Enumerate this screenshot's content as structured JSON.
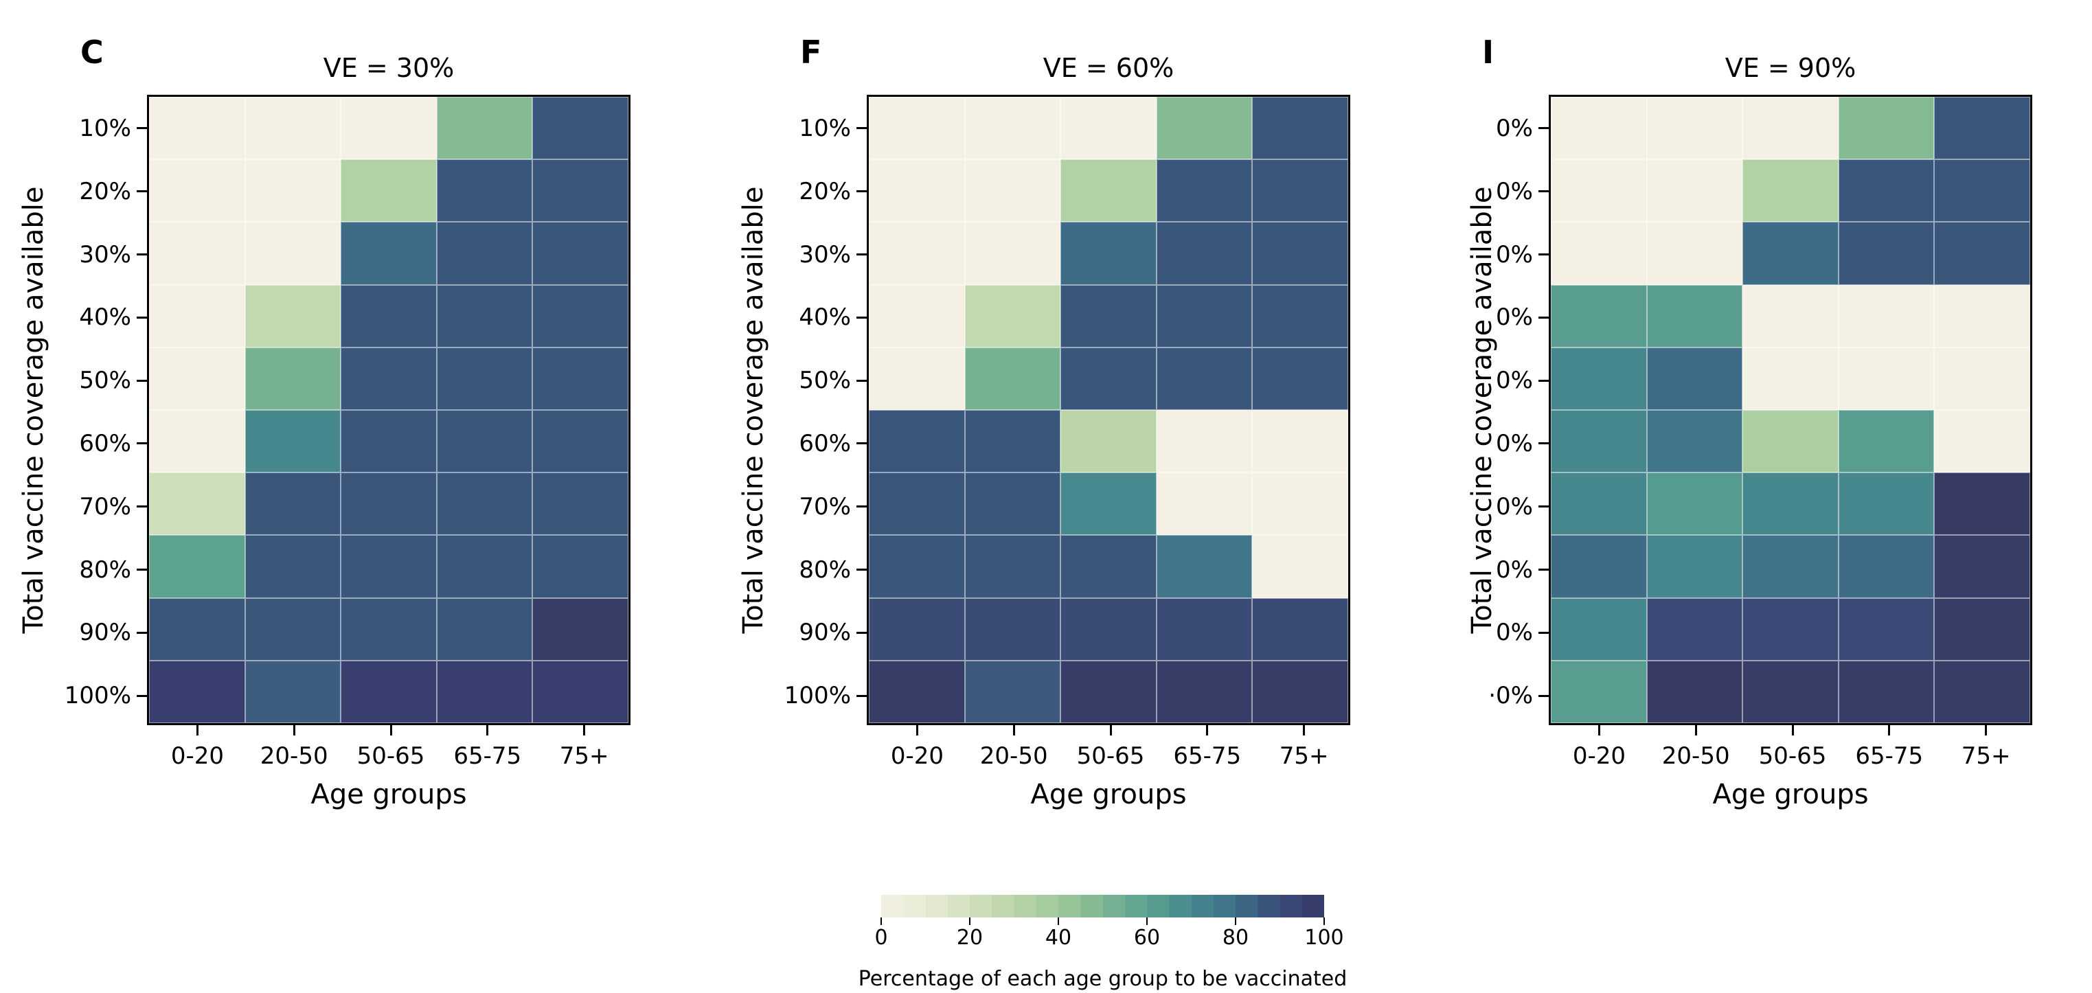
{
  "figure": {
    "background": "#ffffff"
  },
  "colors": {
    "frame": "#000000",
    "gridline": "rgba(255,255,255,0.5)",
    "colormap_stops": [
      [
        0,
        "#f4f1e4"
      ],
      [
        10,
        "#e7ebd4"
      ],
      [
        20,
        "#d2e0bf"
      ],
      [
        30,
        "#bbd5a8"
      ],
      [
        40,
        "#9ec79a"
      ],
      [
        50,
        "#7cb591"
      ],
      [
        60,
        "#5ca28f"
      ],
      [
        70,
        "#47898e"
      ],
      [
        80,
        "#3e6e88"
      ],
      [
        90,
        "#3a4b76"
      ],
      [
        95,
        "#394276"
      ],
      [
        100,
        "#37395f"
      ]
    ]
  },
  "colorbar": {
    "label": "Percentage of each age group to be vaccinated",
    "tick_values": [
      0,
      20,
      40,
      60,
      80,
      100
    ],
    "tick_labels": [
      "0",
      "20",
      "40",
      "60",
      "80",
      "100"
    ],
    "min": 0,
    "max": 100,
    "bins": 20
  },
  "chart_data": [
    {
      "type": "heatmap",
      "panel_letter": "C",
      "title": "VE = 30%",
      "xlabel": "Age groups",
      "ylabel": "Total vaccine coverage available",
      "x_categories": [
        "0-20",
        "20-50",
        "50-65",
        "65-75",
        "75+"
      ],
      "y_tick_labels": [
        "10%",
        "20%",
        "30%",
        "40%",
        "50%",
        "60%",
        "70%",
        "80%",
        "90%",
        "100%"
      ],
      "legend": "cell value = percentage of each age group to be vaccinated (0-100)",
      "values": [
        [
          0,
          0,
          0,
          48,
          87
        ],
        [
          0,
          0,
          33,
          87,
          87
        ],
        [
          0,
          0,
          81,
          87,
          87
        ],
        [
          0,
          27,
          87,
          87,
          87
        ],
        [
          0,
          52,
          87,
          87,
          87
        ],
        [
          0,
          71,
          87,
          87,
          87
        ],
        [
          22,
          87,
          87,
          87,
          87
        ],
        [
          60,
          87,
          87,
          87,
          87
        ],
        [
          87,
          87,
          87,
          87,
          98
        ],
        [
          97,
          85,
          97,
          97,
          97
        ]
      ]
    },
    {
      "type": "heatmap",
      "panel_letter": "F",
      "title": "VE = 60%",
      "xlabel": "Age groups",
      "ylabel": "Total vaccine coverage available",
      "x_categories": [
        "0-20",
        "20-50",
        "50-65",
        "65-75",
        "75+"
      ],
      "y_tick_labels": [
        "10%",
        "20%",
        "30%",
        "40%",
        "50%",
        "60%",
        "70%",
        "80%",
        "90%",
        "100%"
      ],
      "legend": "cell value = percentage of each age group to be vaccinated (0-100)",
      "values": [
        [
          0,
          0,
          0,
          48,
          87
        ],
        [
          0,
          0,
          33,
          87,
          87
        ],
        [
          0,
          0,
          81,
          87,
          87
        ],
        [
          0,
          27,
          87,
          87,
          87
        ],
        [
          0,
          52,
          87,
          87,
          87
        ],
        [
          87,
          87,
          30,
          0,
          0
        ],
        [
          87,
          87,
          70,
          0,
          0
        ],
        [
          87,
          87,
          87,
          77,
          0
        ],
        [
          90,
          90,
          90,
          90,
          90
        ],
        [
          98,
          86,
          98,
          98,
          98
        ]
      ]
    },
    {
      "type": "heatmap",
      "panel_letter": "I",
      "title": "VE = 90%",
      "xlabel": "Age groups",
      "ylabel": "Total vaccine coverage available",
      "x_categories": [
        "0-20",
        "20-50",
        "50-65",
        "65-75",
        "75+"
      ],
      "y_tick_labels": [
        "0%",
        "0%",
        "0%",
        "0%",
        "0%",
        "0%",
        "0%",
        "0%",
        "0%",
        "·0%"
      ],
      "legend": "cell value = percentage of each age group to be vaccinated (0-100)",
      "values": [
        [
          0,
          0,
          0,
          48,
          87
        ],
        [
          0,
          0,
          33,
          87,
          87
        ],
        [
          0,
          0,
          81,
          87,
          87
        ],
        [
          62,
          62,
          0,
          0,
          0
        ],
        [
          71,
          81,
          0,
          0,
          0
        ],
        [
          71,
          77,
          35,
          62,
          0
        ],
        [
          71,
          63,
          71,
          71,
          99
        ],
        [
          81,
          71,
          78,
          81,
          98
        ],
        [
          71,
          91,
          91,
          91,
          98
        ],
        [
          62,
          99,
          98,
          98,
          98
        ]
      ]
    }
  ]
}
